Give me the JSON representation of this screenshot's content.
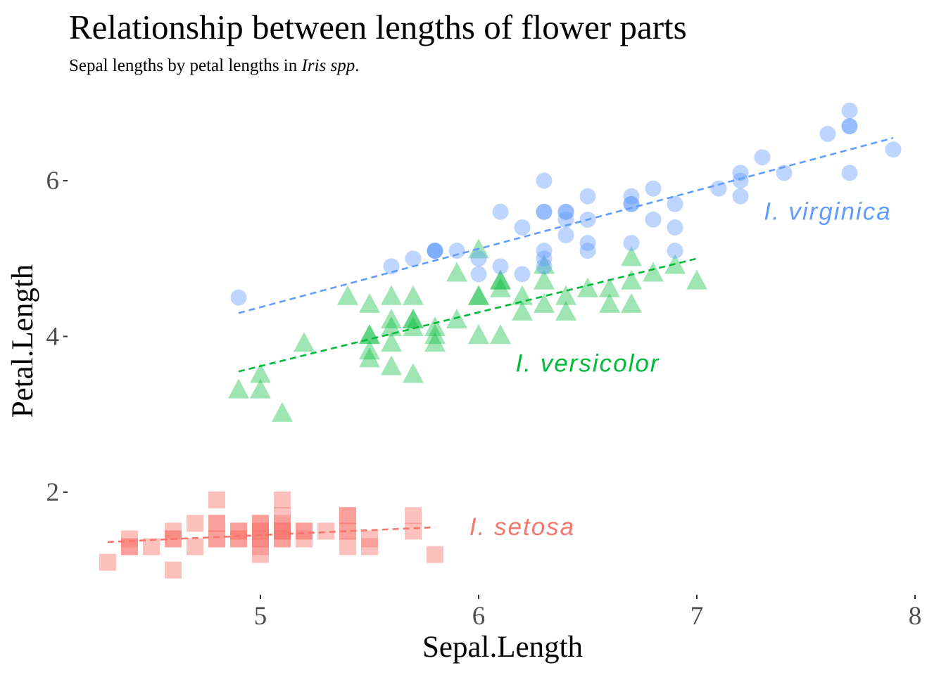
{
  "chart_data": {
    "type": "scatter",
    "title": "Relationship between lengths of flower parts",
    "subtitle_prefix": "Sepal lengths by petal lengths in ",
    "subtitle_italic": "Iris spp",
    "subtitle_suffix": ".",
    "xlabel": "Sepal.Length",
    "ylabel": "Petal.Length",
    "xlim": [
      4.1,
      8.0
    ],
    "ylim": [
      0.7,
      7.2
    ],
    "xticks": [
      5,
      6,
      7,
      8
    ],
    "yticks": [
      2,
      4,
      6
    ],
    "grid": false,
    "legend": "none",
    "series": [
      {
        "name": "I. setosa",
        "color": "#f8766d",
        "marker": "square",
        "trend": {
          "x": [
            4.3,
            5.8
          ],
          "y": [
            1.36,
            1.55
          ]
        },
        "points": [
          [
            4.3,
            1.1
          ],
          [
            4.4,
            1.3
          ],
          [
            4.4,
            1.3
          ],
          [
            4.4,
            1.4
          ],
          [
            4.5,
            1.3
          ],
          [
            4.6,
            1.0
          ],
          [
            4.6,
            1.4
          ],
          [
            4.6,
            1.5
          ],
          [
            4.6,
            1.4
          ],
          [
            4.7,
            1.3
          ],
          [
            4.7,
            1.6
          ],
          [
            4.8,
            1.9
          ],
          [
            4.8,
            1.6
          ],
          [
            4.8,
            1.4
          ],
          [
            4.8,
            1.6
          ],
          [
            4.8,
            1.4
          ],
          [
            4.9,
            1.4
          ],
          [
            4.9,
            1.5
          ],
          [
            4.9,
            1.4
          ],
          [
            4.9,
            1.5
          ],
          [
            5.0,
            1.6
          ],
          [
            5.0,
            1.4
          ],
          [
            5.0,
            1.5
          ],
          [
            5.0,
            1.2
          ],
          [
            5.0,
            1.3
          ],
          [
            5.0,
            1.6
          ],
          [
            5.0,
            1.4
          ],
          [
            5.0,
            1.5
          ],
          [
            5.1,
            1.9
          ],
          [
            5.1,
            1.4
          ],
          [
            5.1,
            1.4
          ],
          [
            5.1,
            1.5
          ],
          [
            5.1,
            1.5
          ],
          [
            5.1,
            1.7
          ],
          [
            5.1,
            1.5
          ],
          [
            5.1,
            1.6
          ],
          [
            5.2,
            1.5
          ],
          [
            5.2,
            1.4
          ],
          [
            5.2,
            1.5
          ],
          [
            5.3,
            1.5
          ],
          [
            5.4,
            1.7
          ],
          [
            5.4,
            1.5
          ],
          [
            5.4,
            1.3
          ],
          [
            5.4,
            1.7
          ],
          [
            5.4,
            1.5
          ],
          [
            5.5,
            1.4
          ],
          [
            5.5,
            1.3
          ],
          [
            5.7,
            1.7
          ],
          [
            5.7,
            1.5
          ],
          [
            5.8,
            1.2
          ]
        ]
      },
      {
        "name": "I. versicolor",
        "color": "#00ba38",
        "marker": "triangle",
        "trend": {
          "x": [
            4.9,
            7.0
          ],
          "y": [
            3.55,
            5.0
          ]
        },
        "points": [
          [
            4.9,
            3.3
          ],
          [
            5.0,
            3.5
          ],
          [
            5.0,
            3.3
          ],
          [
            5.1,
            3.0
          ],
          [
            5.2,
            3.9
          ],
          [
            5.4,
            4.5
          ],
          [
            5.5,
            4.4
          ],
          [
            5.5,
            4.0
          ],
          [
            5.5,
            3.8
          ],
          [
            5.5,
            3.7
          ],
          [
            5.5,
            4.0
          ],
          [
            5.6,
            4.5
          ],
          [
            5.6,
            4.2
          ],
          [
            5.6,
            3.6
          ],
          [
            5.6,
            4.1
          ],
          [
            5.6,
            3.9
          ],
          [
            5.7,
            4.5
          ],
          [
            5.7,
            4.2
          ],
          [
            5.7,
            4.2
          ],
          [
            5.7,
            4.1
          ],
          [
            5.7,
            3.5
          ],
          [
            5.8,
            3.9
          ],
          [
            5.8,
            4.0
          ],
          [
            5.8,
            4.1
          ],
          [
            5.9,
            4.2
          ],
          [
            5.9,
            4.8
          ],
          [
            6.0,
            4.5
          ],
          [
            6.0,
            4.5
          ],
          [
            6.0,
            4.0
          ],
          [
            6.0,
            5.1
          ],
          [
            6.1,
            4.7
          ],
          [
            6.1,
            4.0
          ],
          [
            6.1,
            4.7
          ],
          [
            6.1,
            4.6
          ],
          [
            6.2,
            4.3
          ],
          [
            6.2,
            4.5
          ],
          [
            6.3,
            4.9
          ],
          [
            6.3,
            4.7
          ],
          [
            6.3,
            4.4
          ],
          [
            6.4,
            4.5
          ],
          [
            6.4,
            4.3
          ],
          [
            6.5,
            4.6
          ],
          [
            6.6,
            4.6
          ],
          [
            6.6,
            4.4
          ],
          [
            6.7,
            4.7
          ],
          [
            6.7,
            4.4
          ],
          [
            6.7,
            5.0
          ],
          [
            6.8,
            4.8
          ],
          [
            6.9,
            4.9
          ],
          [
            7.0,
            4.7
          ]
        ]
      },
      {
        "name": "I. virginica",
        "color": "#619cff",
        "marker": "circle",
        "trend": {
          "x": [
            4.9,
            7.9
          ],
          "y": [
            4.3,
            6.55
          ]
        },
        "points": [
          [
            4.9,
            4.5
          ],
          [
            5.6,
            4.9
          ],
          [
            5.7,
            5.0
          ],
          [
            5.8,
            5.1
          ],
          [
            5.8,
            5.1
          ],
          [
            5.8,
            5.1
          ],
          [
            5.9,
            5.1
          ],
          [
            6.0,
            4.8
          ],
          [
            6.0,
            5.0
          ],
          [
            6.1,
            5.6
          ],
          [
            6.1,
            4.9
          ],
          [
            6.2,
            5.4
          ],
          [
            6.2,
            4.8
          ],
          [
            6.3,
            6.0
          ],
          [
            6.3,
            5.6
          ],
          [
            6.3,
            5.6
          ],
          [
            6.3,
            5.1
          ],
          [
            6.3,
            4.9
          ],
          [
            6.3,
            5.0
          ],
          [
            6.4,
            5.6
          ],
          [
            6.4,
            5.5
          ],
          [
            6.4,
            5.3
          ],
          [
            6.4,
            5.6
          ],
          [
            6.5,
            5.8
          ],
          [
            6.5,
            5.5
          ],
          [
            6.5,
            5.2
          ],
          [
            6.5,
            5.1
          ],
          [
            6.7,
            5.8
          ],
          [
            6.7,
            5.7
          ],
          [
            6.7,
            5.2
          ],
          [
            6.7,
            5.7
          ],
          [
            6.8,
            5.5
          ],
          [
            6.8,
            5.9
          ],
          [
            6.9,
            5.4
          ],
          [
            6.9,
            5.7
          ],
          [
            6.9,
            5.1
          ],
          [
            7.1,
            5.9
          ],
          [
            7.2,
            6.1
          ],
          [
            7.2,
            5.8
          ],
          [
            7.2,
            6.0
          ],
          [
            7.3,
            6.3
          ],
          [
            7.4,
            6.1
          ],
          [
            7.6,
            6.6
          ],
          [
            7.7,
            6.7
          ],
          [
            7.7,
            6.9
          ],
          [
            7.7,
            6.7
          ],
          [
            7.7,
            6.1
          ],
          [
            7.9,
            6.4
          ]
        ]
      }
    ],
    "annotations": [
      {
        "text": "I. virginica",
        "x": 7.6,
        "y": 5.5,
        "color": "#619cff"
      },
      {
        "text": "I. versicolor",
        "x": 6.5,
        "y": 3.55,
        "color": "#00ba38"
      },
      {
        "text": "I. setosa",
        "x": 6.2,
        "y": 1.45,
        "color": "#f8766d"
      }
    ]
  }
}
